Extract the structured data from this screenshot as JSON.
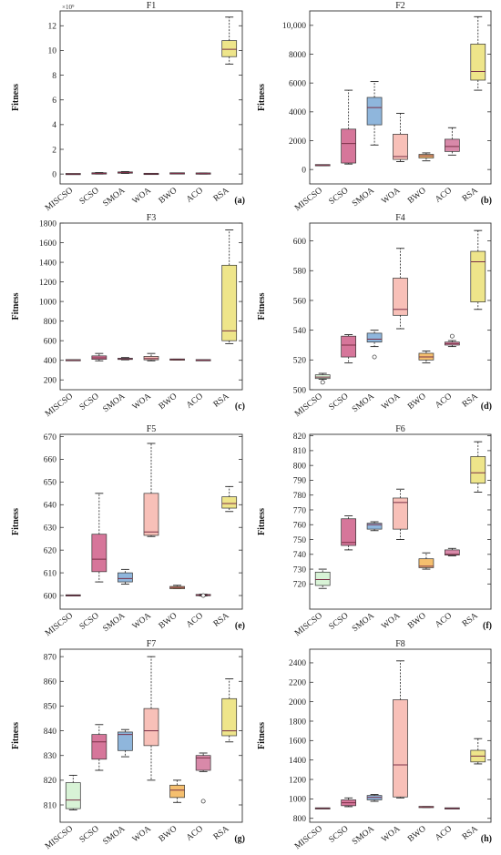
{
  "y_axis_label": "Fitness",
  "categories": [
    "MISCSO",
    "SCSO",
    "SMOA",
    "WOA",
    "BWO",
    "ACO",
    "RSA"
  ],
  "colors": {
    "MISCSO": "#d8f3d6",
    "SCSO": "#d6769a",
    "SMOA": "#8fb6dc",
    "WOA": "#f8c0b8",
    "BWO": "#f5bf6e",
    "ACO": "#d889a9",
    "RSA": "#eee58a",
    "median": "#7a3047",
    "frame": "#333333"
  },
  "chart_data": [
    {
      "type": "box",
      "title": "F1",
      "panel_label": "(a)",
      "exponent_label": "×10⁹",
      "ylim": [
        -0.8,
        13.2
      ],
      "ticks": [
        0,
        2,
        4,
        6,
        8,
        10,
        12
      ],
      "tick_labels": [
        "0",
        "2",
        "4",
        "6",
        "8",
        "10",
        "12"
      ],
      "boxes": [
        {
          "category": "MISCSO",
          "whisker_low": 0,
          "q1": 0,
          "median": 0,
          "q3": 0,
          "whisker_high": 0,
          "outliers": []
        },
        {
          "category": "SCSO",
          "whisker_low": 0.0,
          "q1": 0.02,
          "median": 0.05,
          "q3": 0.08,
          "whisker_high": 0.12,
          "outliers": []
        },
        {
          "category": "SMOA",
          "whisker_low": 0.05,
          "q1": 0.09,
          "median": 0.12,
          "q3": 0.15,
          "whisker_high": 0.2,
          "outliers": []
        },
        {
          "category": "WOA",
          "whisker_low": 0,
          "q1": 0.0,
          "median": 0.01,
          "q3": 0.02,
          "whisker_high": 0.03,
          "outliers": []
        },
        {
          "category": "BWO",
          "whisker_low": 0.03,
          "q1": 0.04,
          "median": 0.05,
          "q3": 0.06,
          "whisker_high": 0.07,
          "outliers": []
        },
        {
          "category": "ACO",
          "whisker_low": 0.0,
          "q1": 0.02,
          "median": 0.04,
          "q3": 0.06,
          "whisker_high": 0.09,
          "outliers": []
        },
        {
          "category": "RSA",
          "whisker_low": 8.9,
          "q1": 9.5,
          "median": 10.1,
          "q3": 10.8,
          "whisker_high": 12.7,
          "outliers": []
        }
      ]
    },
    {
      "type": "box",
      "title": "F2",
      "panel_label": "(b)",
      "ylim": [
        -1000,
        11000
      ],
      "ticks": [
        0,
        2000,
        4000,
        6000,
        8000,
        10000
      ],
      "tick_labels": [
        "0",
        "2000",
        "4000",
        "6000",
        "8000",
        "10,000"
      ],
      "boxes": [
        {
          "category": "MISCSO",
          "whisker_low": 270,
          "q1": 290,
          "median": 300,
          "q3": 310,
          "whisker_high": 330,
          "outliers": []
        },
        {
          "category": "SCSO",
          "whisker_low": 380,
          "q1": 450,
          "median": 1800,
          "q3": 2800,
          "whisker_high": 5500,
          "outliers": []
        },
        {
          "category": "SMOA",
          "whisker_low": 1700,
          "q1": 3100,
          "median": 4300,
          "q3": 5000,
          "whisker_high": 6100,
          "outliers": []
        },
        {
          "category": "WOA",
          "whisker_low": 550,
          "q1": 700,
          "median": 900,
          "q3": 2450,
          "whisker_high": 3900,
          "outliers": []
        },
        {
          "category": "BWO",
          "whisker_low": 600,
          "q1": 800,
          "median": 950,
          "q3": 1050,
          "whisker_high": 1150,
          "outliers": []
        },
        {
          "category": "ACO",
          "whisker_low": 1000,
          "q1": 1250,
          "median": 1600,
          "q3": 2100,
          "whisker_high": 2900,
          "outliers": []
        },
        {
          "category": "RSA",
          "whisker_low": 5500,
          "q1": 6200,
          "median": 6800,
          "q3": 8700,
          "whisker_high": 10600,
          "outliers": []
        }
      ]
    },
    {
      "type": "box",
      "title": "F3",
      "panel_label": "(c)",
      "ylim": [
        100,
        1800
      ],
      "ticks": [
        200,
        400,
        600,
        800,
        1000,
        1200,
        1400,
        1600,
        1800
      ],
      "tick_labels": [
        "200",
        "400",
        "600",
        "800",
        "1000",
        "1200",
        "1400",
        "1600",
        "1800"
      ],
      "boxes": [
        {
          "category": "MISCSO",
          "whisker_low": 400,
          "q1": 400,
          "median": 400,
          "q3": 402,
          "whisker_high": 403,
          "outliers": []
        },
        {
          "category": "SCSO",
          "whisker_low": 395,
          "q1": 410,
          "median": 425,
          "q3": 445,
          "whisker_high": 470,
          "outliers": []
        },
        {
          "category": "SMOA",
          "whisker_low": 405,
          "q1": 410,
          "median": 415,
          "q3": 420,
          "whisker_high": 428,
          "outliers": []
        },
        {
          "category": "WOA",
          "whisker_low": 395,
          "q1": 405,
          "median": 418,
          "q3": 440,
          "whisker_high": 470,
          "outliers": []
        },
        {
          "category": "BWO",
          "whisker_low": 402,
          "q1": 405,
          "median": 408,
          "q3": 410,
          "whisker_high": 412,
          "outliers": []
        },
        {
          "category": "ACO",
          "whisker_low": 400,
          "q1": 400,
          "median": 401,
          "q3": 402,
          "whisker_high": 403,
          "outliers": []
        },
        {
          "category": "RSA",
          "whisker_low": 570,
          "q1": 600,
          "median": 700,
          "q3": 1370,
          "whisker_high": 1730,
          "outliers": []
        }
      ]
    },
    {
      "type": "box",
      "title": "F4",
      "panel_label": "(d)",
      "ylim": [
        500,
        612
      ],
      "ticks": [
        500,
        520,
        540,
        560,
        580,
        600
      ],
      "tick_labels": [
        "500",
        "520",
        "540",
        "560",
        "580",
        "600"
      ],
      "boxes": [
        {
          "category": "MISCSO",
          "whisker_low": 507,
          "q1": 507.5,
          "median": 508.5,
          "q3": 510,
          "whisker_high": 511,
          "outliers": [
            505
          ]
        },
        {
          "category": "SCSO",
          "whisker_low": 518,
          "q1": 522,
          "median": 530,
          "q3": 536,
          "whisker_high": 537,
          "outliers": []
        },
        {
          "category": "SMOA",
          "whisker_low": 529,
          "q1": 532,
          "median": 534,
          "q3": 538,
          "whisker_high": 540,
          "outliers": [
            522
          ]
        },
        {
          "category": "WOA",
          "whisker_low": 541,
          "q1": 550,
          "median": 554,
          "q3": 575,
          "whisker_high": 595,
          "outliers": []
        },
        {
          "category": "BWO",
          "whisker_low": 518,
          "q1": 520,
          "median": 522,
          "q3": 524.5,
          "whisker_high": 526,
          "outliers": []
        },
        {
          "category": "ACO",
          "whisker_low": 529,
          "q1": 530,
          "median": 531,
          "q3": 532,
          "whisker_high": 533,
          "outliers": [
            536
          ]
        },
        {
          "category": "RSA",
          "whisker_low": 554,
          "q1": 559,
          "median": 586,
          "q3": 593,
          "whisker_high": 607,
          "outliers": []
        }
      ]
    },
    {
      "type": "box",
      "title": "F5",
      "panel_label": "(e)",
      "ylim": [
        594,
        671
      ],
      "ticks": [
        600,
        610,
        620,
        630,
        640,
        650,
        660,
        670
      ],
      "tick_labels": [
        "600",
        "610",
        "620",
        "630",
        "640",
        "650",
        "660",
        "670"
      ],
      "boxes": [
        {
          "category": "MISCSO",
          "whisker_low": 600,
          "q1": 600,
          "median": 600,
          "q3": 600.1,
          "whisker_high": 600.2,
          "outliers": []
        },
        {
          "category": "SCSO",
          "whisker_low": 606,
          "q1": 610.5,
          "median": 616,
          "q3": 627,
          "whisker_high": 645,
          "outliers": []
        },
        {
          "category": "SMOA",
          "whisker_low": 605,
          "q1": 606,
          "median": 607.5,
          "q3": 610,
          "whisker_high": 611.5,
          "outliers": []
        },
        {
          "category": "WOA",
          "whisker_low": 626,
          "q1": 626.5,
          "median": 628,
          "q3": 645,
          "whisker_high": 667,
          "outliers": []
        },
        {
          "category": "BWO",
          "whisker_low": 603,
          "q1": 603,
          "median": 603.5,
          "q3": 604,
          "whisker_high": 604.5,
          "outliers": []
        },
        {
          "category": "ACO",
          "whisker_low": 599.8,
          "q1": 600,
          "median": 600.2,
          "q3": 600.4,
          "whisker_high": 600.6,
          "outliers": [
            600
          ]
        },
        {
          "category": "RSA",
          "whisker_low": 637,
          "q1": 638.5,
          "median": 640.5,
          "q3": 643.5,
          "whisker_high": 648,
          "outliers": []
        }
      ]
    },
    {
      "type": "box",
      "title": "F6",
      "panel_label": "(f)",
      "ylim": [
        703,
        821
      ],
      "ticks": [
        720,
        730,
        740,
        750,
        760,
        770,
        780,
        790,
        800,
        810,
        820
      ],
      "tick_labels": [
        "720",
        "730",
        "740",
        "750",
        "760",
        "770",
        "780",
        "790",
        "800",
        "810",
        "820"
      ],
      "boxes": [
        {
          "category": "MISCSO",
          "whisker_low": 717,
          "q1": 719,
          "median": 723,
          "q3": 728,
          "whisker_high": 730,
          "outliers": []
        },
        {
          "category": "SCSO",
          "whisker_low": 743,
          "q1": 746,
          "median": 748,
          "q3": 764,
          "whisker_high": 766,
          "outliers": []
        },
        {
          "category": "SMOA",
          "whisker_low": 756,
          "q1": 757,
          "median": 760,
          "q3": 761,
          "whisker_high": 762,
          "outliers": []
        },
        {
          "category": "WOA",
          "whisker_low": 750,
          "q1": 757,
          "median": 775,
          "q3": 778,
          "whisker_high": 784,
          "outliers": []
        },
        {
          "category": "BWO",
          "whisker_low": 730,
          "q1": 731,
          "median": 732,
          "q3": 737,
          "whisker_high": 741,
          "outliers": []
        },
        {
          "category": "ACO",
          "whisker_low": 739,
          "q1": 739.5,
          "median": 740,
          "q3": 743,
          "whisker_high": 744,
          "outliers": []
        },
        {
          "category": "RSA",
          "whisker_low": 782,
          "q1": 788,
          "median": 795,
          "q3": 806,
          "whisker_high": 816,
          "outliers": []
        }
      ]
    },
    {
      "type": "box",
      "title": "F7",
      "panel_label": "(g)",
      "ylim": [
        803,
        873
      ],
      "ticks": [
        810,
        820,
        830,
        840,
        850,
        860,
        870
      ],
      "tick_labels": [
        "810",
        "820",
        "830",
        "840",
        "850",
        "860",
        "870"
      ],
      "boxes": [
        {
          "category": "MISCSO",
          "whisker_low": 808,
          "q1": 808.5,
          "median": 812,
          "q3": 819,
          "whisker_high": 822,
          "outliers": []
        },
        {
          "category": "SCSO",
          "whisker_low": 824,
          "q1": 828.5,
          "median": 835.5,
          "q3": 838.5,
          "whisker_high": 842.5,
          "outliers": []
        },
        {
          "category": "SMOA",
          "whisker_low": 829.5,
          "q1": 832,
          "median": 838.5,
          "q3": 839.5,
          "whisker_high": 840.5,
          "outliers": []
        },
        {
          "category": "WOA",
          "whisker_low": 820,
          "q1": 834,
          "median": 840,
          "q3": 849,
          "whisker_high": 870,
          "outliers": []
        },
        {
          "category": "BWO",
          "whisker_low": 811,
          "q1": 813,
          "median": 816,
          "q3": 818,
          "whisker_high": 820,
          "outliers": []
        },
        {
          "category": "ACO",
          "whisker_low": 823.5,
          "q1": 824,
          "median": 829,
          "q3": 830,
          "whisker_high": 831,
          "outliers": [
            811.5
          ]
        },
        {
          "category": "RSA",
          "whisker_low": 835.5,
          "q1": 838,
          "median": 840,
          "q3": 853,
          "whisker_high": 861,
          "outliers": []
        }
      ]
    },
    {
      "type": "box",
      "title": "F8",
      "panel_label": "(h)",
      "ylim": [
        760,
        2540
      ],
      "ticks": [
        800,
        1000,
        1200,
        1400,
        1600,
        1800,
        2000,
        2200,
        2400
      ],
      "tick_labels": [
        "800",
        "1000",
        "1200",
        "1400",
        "1600",
        "1800",
        "2000",
        "2200",
        "2400"
      ],
      "boxes": [
        {
          "category": "MISCSO",
          "whisker_low": 900,
          "q1": 901,
          "median": 902,
          "q3": 903,
          "whisker_high": 904,
          "outliers": []
        },
        {
          "category": "SCSO",
          "whisker_low": 920,
          "q1": 930,
          "median": 960,
          "q3": 990,
          "whisker_high": 1010,
          "outliers": []
        },
        {
          "category": "SMOA",
          "whisker_low": 975,
          "q1": 990,
          "median": 1015,
          "q3": 1035,
          "whisker_high": 1045,
          "outliers": []
        },
        {
          "category": "WOA",
          "whisker_low": 1010,
          "q1": 1020,
          "median": 1350,
          "q3": 2020,
          "whisker_high": 2420,
          "outliers": []
        },
        {
          "category": "BWO",
          "whisker_low": 912,
          "q1": 914,
          "median": 917,
          "q3": 919,
          "whisker_high": 921,
          "outliers": []
        },
        {
          "category": "ACO",
          "whisker_low": 900,
          "q1": 901,
          "median": 902,
          "q3": 903,
          "whisker_high": 904,
          "outliers": []
        },
        {
          "category": "RSA",
          "whisker_low": 1360,
          "q1": 1380,
          "median": 1440,
          "q3": 1500,
          "whisker_high": 1620,
          "outliers": []
        }
      ]
    }
  ]
}
